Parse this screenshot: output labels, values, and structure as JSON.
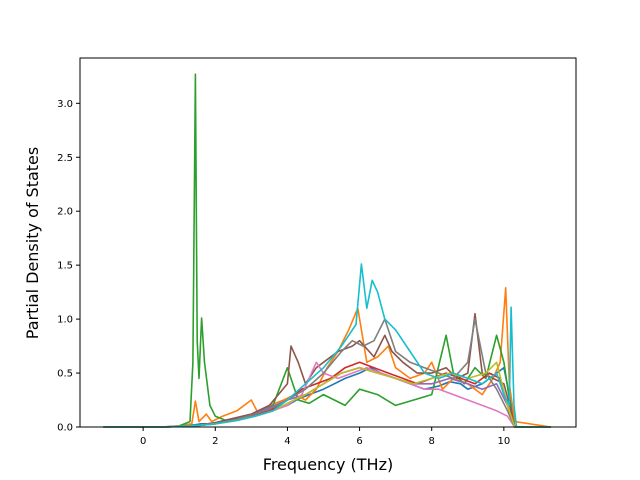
{
  "chart_data": {
    "type": "line",
    "title": "",
    "xlabel": "Frequency (THz)",
    "ylabel": "Partial Density of States",
    "xlim": [
      -1.75,
      12.0
    ],
    "ylim": [
      0.0,
      3.42
    ],
    "x_ticks": [
      "0",
      "2",
      "4",
      "6",
      "8",
      "10"
    ],
    "x_tick_values": [
      0,
      2,
      4,
      6,
      8,
      10
    ],
    "y_ticks": [
      "0.0",
      "0.5",
      "1.0",
      "1.5",
      "2.0",
      "2.5",
      "3.0"
    ],
    "y_tick_values": [
      0.0,
      0.5,
      1.0,
      1.5,
      2.0,
      2.5,
      3.0
    ],
    "grid": false,
    "legend": "none",
    "series": [
      {
        "color": "#1f77b4",
        "points": [
          [
            -1.1,
            0
          ],
          [
            0.4,
            0
          ],
          [
            1.0,
            0.005
          ],
          [
            1.45,
            0.02
          ],
          [
            1.6,
            0.03
          ],
          [
            2.0,
            0.03
          ],
          [
            2.5,
            0.06
          ],
          [
            3.0,
            0.1
          ],
          [
            3.5,
            0.15
          ],
          [
            4.0,
            0.2
          ],
          [
            4.3,
            0.26
          ],
          [
            4.6,
            0.3
          ],
          [
            5.0,
            0.35
          ],
          [
            5.3,
            0.4
          ],
          [
            5.6,
            0.45
          ],
          [
            6.0,
            0.5
          ],
          [
            6.3,
            0.55
          ],
          [
            6.6,
            0.5
          ],
          [
            7.0,
            0.45
          ],
          [
            7.4,
            0.4
          ],
          [
            7.8,
            0.35
          ],
          [
            8.2,
            0.38
          ],
          [
            8.5,
            0.42
          ],
          [
            8.8,
            0.4
          ],
          [
            9.0,
            0.35
          ],
          [
            9.4,
            0.4
          ],
          [
            9.8,
            0.5
          ],
          [
            10.0,
            0.55
          ],
          [
            10.15,
            0.3
          ],
          [
            10.3,
            0
          ],
          [
            11.3,
            0
          ]
        ]
      },
      {
        "color": "#ff7f0e",
        "points": [
          [
            -1.1,
            0
          ],
          [
            0.5,
            0
          ],
          [
            1.0,
            0.01
          ],
          [
            1.35,
            0.03
          ],
          [
            1.45,
            0.24
          ],
          [
            1.55,
            0.05
          ],
          [
            1.75,
            0.12
          ],
          [
            1.9,
            0.05
          ],
          [
            2.2,
            0.1
          ],
          [
            2.6,
            0.15
          ],
          [
            3.0,
            0.25
          ],
          [
            3.2,
            0.12
          ],
          [
            3.5,
            0.2
          ],
          [
            3.9,
            0.25
          ],
          [
            4.2,
            0.3
          ],
          [
            4.5,
            0.25
          ],
          [
            4.8,
            0.35
          ],
          [
            5.1,
            0.55
          ],
          [
            5.4,
            0.7
          ],
          [
            5.7,
            0.9
          ],
          [
            5.95,
            1.1
          ],
          [
            6.2,
            0.6
          ],
          [
            6.5,
            0.65
          ],
          [
            6.8,
            0.75
          ],
          [
            7.0,
            0.55
          ],
          [
            7.4,
            0.45
          ],
          [
            7.8,
            0.5
          ],
          [
            8.0,
            0.6
          ],
          [
            8.3,
            0.35
          ],
          [
            8.6,
            0.45
          ],
          [
            9.0,
            0.4
          ],
          [
            9.4,
            0.3
          ],
          [
            9.7,
            0.45
          ],
          [
            9.9,
            0.6
          ],
          [
            10.05,
            1.29
          ],
          [
            10.15,
            0.4
          ],
          [
            10.3,
            0.05
          ],
          [
            11.3,
            0
          ]
        ]
      },
      {
        "color": "#2ca02c",
        "points": [
          [
            -1.1,
            0
          ],
          [
            0.5,
            0
          ],
          [
            1.0,
            0.01
          ],
          [
            1.3,
            0.05
          ],
          [
            1.38,
            0.6
          ],
          [
            1.45,
            3.27
          ],
          [
            1.5,
            0.8
          ],
          [
            1.55,
            0.45
          ],
          [
            1.62,
            1.01
          ],
          [
            1.7,
            0.6
          ],
          [
            1.85,
            0.2
          ],
          [
            2.0,
            0.1
          ],
          [
            2.3,
            0.06
          ],
          [
            2.7,
            0.08
          ],
          [
            3.0,
            0.1
          ],
          [
            3.3,
            0.15
          ],
          [
            3.6,
            0.2
          ],
          [
            4.0,
            0.55
          ],
          [
            4.3,
            0.25
          ],
          [
            4.6,
            0.22
          ],
          [
            5.0,
            0.3
          ],
          [
            5.3,
            0.25
          ],
          [
            5.6,
            0.2
          ],
          [
            6.0,
            0.35
          ],
          [
            6.5,
            0.3
          ],
          [
            7.0,
            0.2
          ],
          [
            7.5,
            0.25
          ],
          [
            8.0,
            0.3
          ],
          [
            8.4,
            0.85
          ],
          [
            8.6,
            0.5
          ],
          [
            8.9,
            0.4
          ],
          [
            9.2,
            0.55
          ],
          [
            9.5,
            0.45
          ],
          [
            9.8,
            0.85
          ],
          [
            10.0,
            0.6
          ],
          [
            10.2,
            0.15
          ],
          [
            10.3,
            0
          ],
          [
            11.3,
            0
          ]
        ]
      },
      {
        "color": "#d62728",
        "points": [
          [
            -1.1,
            0
          ],
          [
            0.6,
            0
          ],
          [
            1.4,
            0.01
          ],
          [
            2.0,
            0.03
          ],
          [
            2.5,
            0.06
          ],
          [
            3.0,
            0.1
          ],
          [
            3.5,
            0.15
          ],
          [
            4.0,
            0.25
          ],
          [
            4.4,
            0.35
          ],
          [
            4.8,
            0.4
          ],
          [
            5.2,
            0.45
          ],
          [
            5.6,
            0.55
          ],
          [
            6.0,
            0.6
          ],
          [
            6.4,
            0.55
          ],
          [
            6.8,
            0.5
          ],
          [
            7.2,
            0.45
          ],
          [
            7.6,
            0.4
          ],
          [
            8.0,
            0.45
          ],
          [
            8.4,
            0.5
          ],
          [
            8.8,
            0.45
          ],
          [
            9.2,
            0.4
          ],
          [
            9.6,
            0.5
          ],
          [
            9.9,
            0.45
          ],
          [
            10.1,
            0.2
          ],
          [
            10.3,
            0
          ],
          [
            11.3,
            0
          ]
        ]
      },
      {
        "color": "#9467bd",
        "points": [
          [
            -1.1,
            0
          ],
          [
            0.6,
            0
          ],
          [
            1.4,
            0.01
          ],
          [
            2.0,
            0.04
          ],
          [
            2.5,
            0.08
          ],
          [
            3.0,
            0.12
          ],
          [
            3.5,
            0.18
          ],
          [
            4.0,
            0.25
          ],
          [
            4.5,
            0.3
          ],
          [
            5.0,
            0.4
          ],
          [
            5.5,
            0.5
          ],
          [
            6.0,
            0.55
          ],
          [
            6.5,
            0.5
          ],
          [
            7.0,
            0.45
          ],
          [
            7.5,
            0.4
          ],
          [
            8.0,
            0.4
          ],
          [
            8.5,
            0.45
          ],
          [
            9.0,
            0.4
          ],
          [
            9.4,
            0.35
          ],
          [
            9.8,
            0.4
          ],
          [
            10.1,
            0.2
          ],
          [
            10.3,
            0
          ],
          [
            11.3,
            0
          ]
        ]
      },
      {
        "color": "#8c564b",
        "points": [
          [
            -1.1,
            0
          ],
          [
            0.6,
            0
          ],
          [
            1.4,
            0.01
          ],
          [
            2.0,
            0.04
          ],
          [
            2.5,
            0.08
          ],
          [
            3.0,
            0.12
          ],
          [
            3.5,
            0.2
          ],
          [
            4.0,
            0.4
          ],
          [
            4.1,
            0.75
          ],
          [
            4.3,
            0.6
          ],
          [
            4.5,
            0.4
          ],
          [
            4.8,
            0.55
          ],
          [
            5.0,
            0.6
          ],
          [
            5.4,
            0.7
          ],
          [
            5.8,
            0.75
          ],
          [
            6.0,
            0.8
          ],
          [
            6.4,
            0.65
          ],
          [
            6.7,
            0.85
          ],
          [
            6.9,
            0.7
          ],
          [
            7.2,
            0.6
          ],
          [
            7.6,
            0.5
          ],
          [
            8.0,
            0.5
          ],
          [
            8.4,
            0.55
          ],
          [
            8.7,
            0.45
          ],
          [
            9.0,
            0.5
          ],
          [
            9.2,
            1.05
          ],
          [
            9.4,
            0.5
          ],
          [
            9.7,
            0.45
          ],
          [
            10.0,
            0.4
          ],
          [
            10.2,
            0.15
          ],
          [
            10.3,
            0
          ],
          [
            11.3,
            0
          ]
        ]
      },
      {
        "color": "#e377c2",
        "points": [
          [
            -1.1,
            0
          ],
          [
            0.6,
            0
          ],
          [
            1.4,
            0.01
          ],
          [
            2.0,
            0.03
          ],
          [
            2.6,
            0.06
          ],
          [
            3.1,
            0.1
          ],
          [
            3.6,
            0.15
          ],
          [
            4.0,
            0.2
          ],
          [
            4.4,
            0.3
          ],
          [
            4.8,
            0.6
          ],
          [
            5.0,
            0.5
          ],
          [
            5.4,
            0.45
          ],
          [
            5.8,
            0.5
          ],
          [
            6.2,
            0.55
          ],
          [
            6.6,
            0.5
          ],
          [
            7.0,
            0.45
          ],
          [
            7.4,
            0.4
          ],
          [
            7.8,
            0.35
          ],
          [
            8.2,
            0.35
          ],
          [
            8.6,
            0.3
          ],
          [
            9.0,
            0.25
          ],
          [
            9.4,
            0.2
          ],
          [
            9.8,
            0.15
          ],
          [
            10.1,
            0.1
          ],
          [
            10.3,
            0
          ],
          [
            11.3,
            0
          ]
        ]
      },
      {
        "color": "#7f7f7f",
        "points": [
          [
            -1.1,
            0
          ],
          [
            0.6,
            0
          ],
          [
            1.4,
            0.01
          ],
          [
            2.0,
            0.03
          ],
          [
            2.6,
            0.07
          ],
          [
            3.1,
            0.12
          ],
          [
            3.6,
            0.18
          ],
          [
            4.0,
            0.25
          ],
          [
            4.5,
            0.35
          ],
          [
            5.0,
            0.5
          ],
          [
            5.5,
            0.7
          ],
          [
            5.8,
            0.8
          ],
          [
            6.1,
            0.75
          ],
          [
            6.4,
            0.8
          ],
          [
            6.7,
            1.0
          ],
          [
            7.0,
            0.7
          ],
          [
            7.4,
            0.6
          ],
          [
            7.8,
            0.55
          ],
          [
            8.2,
            0.5
          ],
          [
            8.6,
            0.45
          ],
          [
            9.0,
            0.6
          ],
          [
            9.2,
            1.0
          ],
          [
            9.5,
            0.5
          ],
          [
            9.8,
            0.35
          ],
          [
            10.1,
            0.15
          ],
          [
            10.3,
            0
          ],
          [
            11.3,
            0
          ]
        ]
      },
      {
        "color": "#bcbd22",
        "points": [
          [
            -1.1,
            0
          ],
          [
            0.6,
            0
          ],
          [
            1.4,
            0.01
          ],
          [
            2.0,
            0.03
          ],
          [
            2.6,
            0.06
          ],
          [
            3.1,
            0.1
          ],
          [
            3.6,
            0.15
          ],
          [
            4.0,
            0.22
          ],
          [
            4.5,
            0.3
          ],
          [
            5.0,
            0.4
          ],
          [
            5.5,
            0.5
          ],
          [
            6.0,
            0.55
          ],
          [
            6.5,
            0.5
          ],
          [
            7.0,
            0.45
          ],
          [
            7.5,
            0.4
          ],
          [
            8.0,
            0.45
          ],
          [
            8.5,
            0.5
          ],
          [
            9.0,
            0.45
          ],
          [
            9.5,
            0.5
          ],
          [
            9.8,
            0.6
          ],
          [
            10.1,
            0.2
          ],
          [
            10.3,
            0
          ],
          [
            11.3,
            0
          ]
        ]
      },
      {
        "color": "#17becf",
        "points": [
          [
            -1.1,
            0
          ],
          [
            0.6,
            0
          ],
          [
            1.4,
            0.01
          ],
          [
            2.0,
            0.03
          ],
          [
            2.6,
            0.06
          ],
          [
            3.1,
            0.1
          ],
          [
            3.6,
            0.15
          ],
          [
            4.0,
            0.25
          ],
          [
            4.5,
            0.4
          ],
          [
            5.0,
            0.55
          ],
          [
            5.5,
            0.75
          ],
          [
            5.9,
            0.95
          ],
          [
            6.05,
            1.51
          ],
          [
            6.2,
            1.1
          ],
          [
            6.35,
            1.36
          ],
          [
            6.5,
            1.25
          ],
          [
            6.7,
            1.0
          ],
          [
            7.0,
            0.9
          ],
          [
            7.4,
            0.7
          ],
          [
            7.8,
            0.5
          ],
          [
            8.2,
            0.45
          ],
          [
            8.6,
            0.5
          ],
          [
            9.0,
            0.45
          ],
          [
            9.4,
            0.4
          ],
          [
            9.8,
            0.5
          ],
          [
            10.0,
            0.3
          ],
          [
            10.15,
            0.2
          ],
          [
            10.2,
            1.11
          ],
          [
            10.28,
            0.2
          ],
          [
            10.35,
            0
          ],
          [
            11.3,
            0
          ]
        ]
      }
    ]
  }
}
